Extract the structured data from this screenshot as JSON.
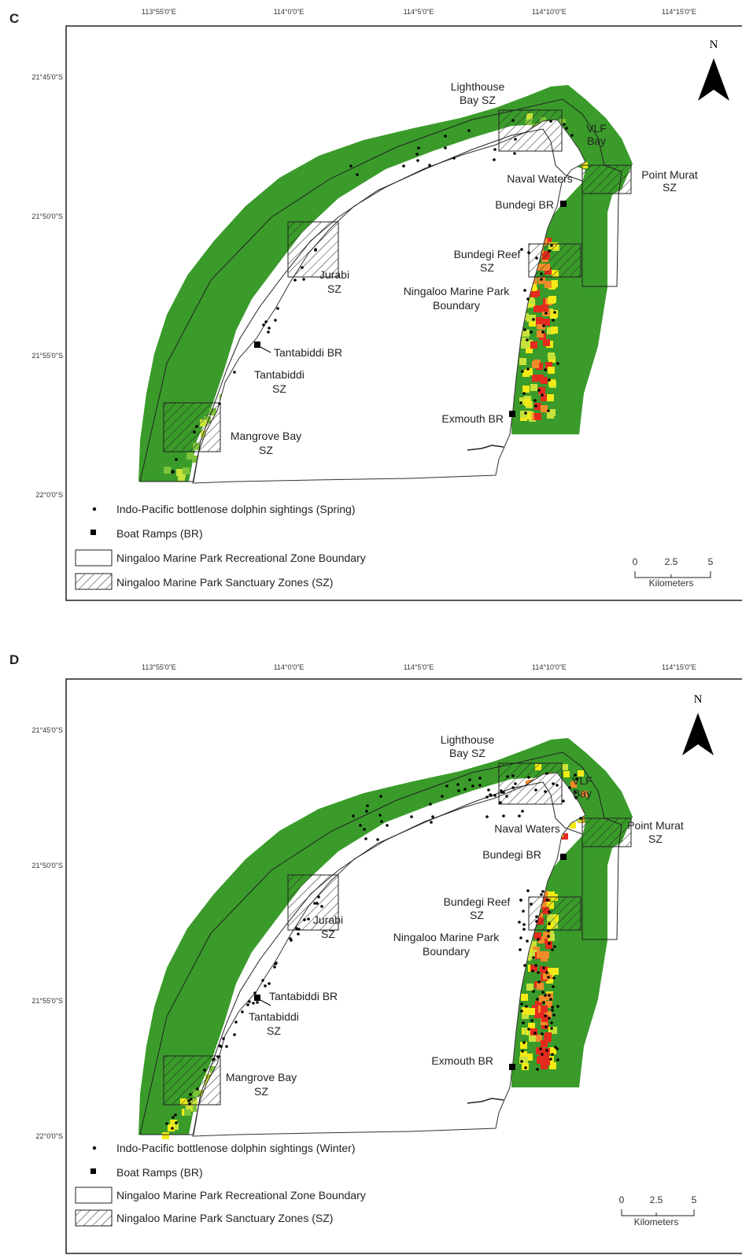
{
  "panels": [
    {
      "letter": "C",
      "lon_labels": [
        "113°55'0\"E",
        "114°0'0\"E",
        "114°5'0\"E",
        "114°10'0\"E",
        "114°15'0\"E"
      ],
      "lat_labels": [
        "21°45'0\"S",
        "21°50'0\"S",
        "21°55'0\"S",
        "22°0'0\"S"
      ],
      "north": "N",
      "places": {
        "lighthouse": [
          "Lighthouse",
          "Bay SZ"
        ],
        "vlf": [
          "VLF",
          "Bay"
        ],
        "naval": "Naval Waters",
        "point_murat": [
          "Point Murat",
          "SZ"
        ],
        "bundegi_br": "Bundegi BR",
        "bundegi_reef": [
          "Bundegi Reef",
          "SZ"
        ],
        "boundary": [
          "Ningaloo Marine Park",
          "Boundary"
        ],
        "jurabi": [
          "Jurabi",
          "SZ"
        ],
        "tantabiddi_br": "Tantabiddi BR",
        "tantabiddi": [
          "Tantabiddi",
          "SZ"
        ],
        "exmouth_br": "Exmouth BR",
        "mangrove": [
          "Mangrove Bay",
          "SZ"
        ]
      },
      "legend": {
        "sightings": "Indo-Pacific bottlenose dolphin sightings (Spring)",
        "ramps": "Boat Ramps (BR)",
        "rec_zone": "Ningaloo Marine Park Recreational Zone Boundary",
        "sanctuary": "Ningaloo Marine Park Sanctuary Zones (SZ)"
      },
      "scale": {
        "ticks": [
          "0",
          "2.5",
          "5"
        ],
        "unit": "Kilometers"
      }
    },
    {
      "letter": "D",
      "lon_labels": [
        "113°55'0\"E",
        "114°0'0\"E",
        "114°5'0\"E",
        "114°10'0\"E",
        "114°15'0\"E"
      ],
      "lat_labels": [
        "21°45'0\"S",
        "21°50'0\"S",
        "21°55'0\"S",
        "22°0'0\"S"
      ],
      "north": "N",
      "places": {
        "lighthouse": [
          "Lighthouse",
          "Bay SZ"
        ],
        "vlf": [
          "VLF",
          "Bay"
        ],
        "naval": "Naval Waters",
        "point_murat": [
          "Point Murat",
          "SZ"
        ],
        "bundegi_br": "Bundegi BR",
        "bundegi_reef": [
          "Bundegi Reef",
          "SZ"
        ],
        "boundary": [
          "Ningaloo Marine Park",
          "Boundary"
        ],
        "jurabi": [
          "Jurabi",
          "SZ"
        ],
        "tantabiddi_br": "Tantabiddi BR",
        "tantabiddi": [
          "Tantabiddi",
          "SZ"
        ],
        "exmouth_br": "Exmouth BR",
        "mangrove": [
          "Mangrove Bay",
          "SZ"
        ]
      },
      "legend": {
        "sightings": "Indo-Pacific bottlenose dolphin sightings (Winter)",
        "ramps": "Boat Ramps (BR)",
        "rec_zone": "Ningaloo Marine Park Recreational Zone Boundary",
        "sanctuary": "Ningaloo Marine Park Sanctuary Zones (SZ)"
      },
      "scale": {
        "ticks": [
          "0",
          "2.5",
          "5"
        ],
        "unit": "Kilometers"
      }
    }
  ],
  "colors": {
    "green_dark": "#3a9b2a",
    "green_mid": "#7cc43a",
    "yellow_green": "#c7e23a",
    "yellow": "#f3ea16",
    "orange": "#f28c2a",
    "red": "#e32b1e",
    "land": "#ffffff",
    "outline": "#222222"
  }
}
